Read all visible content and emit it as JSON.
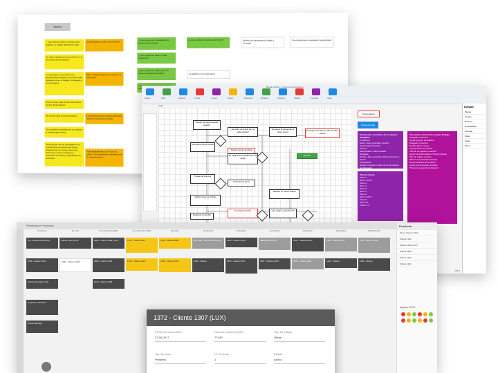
{
  "board": {
    "header_button": "Nuevo",
    "notes": [
      {
        "text": "... que utilice el mismo concepto para guardar, no pedirle guardar por caso",
        "color": "yellow"
      },
      {
        "text": "Se destacaba no sabe cómo guardar",
        "color": "orange"
      },
      {
        "text": "¿Cómo podemos la identificar los grupos e interesado?",
        "color": "green"
      },
      {
        "text": "¿Cómo podemos mostrar a personas?",
        "color": "green"
      },
      {
        "text": "Modelo de comunicación digital y (Google)",
        "color": "white"
      },
      {
        "text": "Proximidad que el delegado da estructura",
        "color": "white"
      },
      {
        "text": "No sabe realizado de las profesión en si (la cuenta de los clientes)",
        "color": "yellow"
      },
      {
        "text": "¿Cómo podemos hacer lo más relacionar?",
        "color": "green"
      },
      {
        "text": "Sabe realizado algunos sin tareas y la estructura",
        "color": "orange"
      },
      {
        "text": "¿Cómo podemos saber que ciclo grupo de trabajo las tareas?",
        "color": "green"
      },
      {
        "text": "Centralizar en la información",
        "color": "white"
      },
      {
        "text": "Lo que haga en que decirle son generalmente solapar lo que hace están tardando correo el trabajo, al delegado y los secretarios",
        "color": "yellow"
      },
      {
        "text": "¿Cómo podemos hacer que la libre Ganar...",
        "color": "green"
      },
      {
        "text": "Ver su trabajo",
        "color": "white"
      },
      {
        "text": "Para él lo que sabe dónde está obtener de tipo de al proyecto",
        "color": "yellow"
      },
      {
        "text": "No accede todo la documentación",
        "color": "yellow"
      },
      {
        "text": "La información que vuelva a diferentes sectores de oficina el estrado",
        "color": "orange"
      },
      {
        "text": "No le podemos cambiar que no molesta a molesta que se hace",
        "color": "yellow"
      },
      {
        "text": "Teniendo que de Ver que llegan en la misma forma de tareas este equipo, directamente con lo que hacen das diferentes a varios delegados y cuestiones de oficina y expedientes en la tercera",
        "color": "yellow"
      },
      {
        "text": "Todo departamento con el que no saben a documentación obtenida (dos) de departamentos",
        "color": "orange"
      }
    ]
  },
  "flow": {
    "window_title": "Bizagi Modeler - Proceso de Expediente",
    "toolbar": [
      "Nuevo",
      "Abrir",
      "Guardar",
      "Cortar",
      "Copiar",
      "Pegar",
      "Deshacer",
      "Rehacer",
      "Publicar",
      "Validar",
      "Formato",
      "Vista"
    ],
    "sheet_tab": "Inicio",
    "shapes": [
      "Recibir las tareas desde gestión",
      "¿Requiere revisar tarea?",
      "¿Se debe de entrar los por cada cliente?",
      "Desglose la capacidad a tarea nueva",
      "Se asigna una tarea a dar de alta a cliente",
      "Asignar tarea completa",
      "Se asigna las expedientes a la tarea",
      "Tareas de clientes",
      "Informe",
      "Validar tarea de trabajo",
      "Seleccionar tarea",
      "Registrar el cambio",
      "Solicitar un nuevo cliente",
      "Se asigna la tarea",
      "¿Se asignó expediente?",
      "Realizar tarea hacia",
      "¿El mercado?",
      "¿Se puede realizar la tarea?"
    ],
    "red_label": "Presentación",
    "blue_label": "Tarea Actividad",
    "pane_purple_title": "Documentos asociados de los grupos delegados",
    "pane_purple_lines": [
      "Propietario",
      "Datos: Jefes generales, Gestión Oportunidad y Fechas",
      "Clientes",
      "Responsable: Cliente Rafael",
      "Delegado",
      "Recibe: Jefes generales, Mayor Anuncios y fechas",
      "Presupuesto",
      "Recibe: Facturas o clave de Comunicación del Delegado",
      "Plan de trabajo"
    ],
    "pane_blue_title": "Plan de trabajo",
    "pane_blue_lines": [
      "Tarea 1",
      "Nivel: 1 (1-4)",
      "Tarea 2",
      "Nivel: 1",
      "Tarea 3",
      "Nivel: 2",
      "Tarea 4",
      "Nivel: 3 (5-7)",
      "Tarea 5",
      "Nivel: 2-1",
      "Fecha: 1-4"
    ],
    "pane_magenta_title": "Área Gestor Comercial en grupo Delegar",
    "pane_magenta_lines": [
      "Delegado comercial",
      "Actual al grupo de clientes",
      "Delegado comercial",
      "Recibe datos nuevos",
      "Presupuestos Comercial",
      "Informe de gestión comercial",
      "Gestor de Administración Cliente (Mesa)",
      "Plan de trabajo enviado",
      "Planes comunicación (Gestor)",
      "Documentación de la oficina",
      "Fecha Comunicación de todos",
      "Planes de seguimiento (Gestor)"
    ],
    "right_panel_title": "Default",
    "right_panel_items": [
      "Tareas",
      "Grupos",
      "Eventos",
      "Propiedades",
      "Formato",
      "Datos",
      "Capa",
      "Otros"
    ],
    "zoom": "100%"
  },
  "kanban": {
    "window_title": "Planificador Productos",
    "columns": [
      "Pendiente",
      "En cola",
      "En producción (MD)",
      "En producción (MD)",
      "Revisión",
      "Pendientes",
      "Entregado",
      "Avanzando",
      "Finalizado",
      "Aprobados",
      "Finalizado (F)"
    ],
    "cards": [
      {
        "col": 0,
        "text": "FD - Cliente 1048 (LUX)",
        "style": "kdark"
      },
      {
        "col": 0,
        "text": "1250 - Cliente 1012",
        "style": "kdark"
      },
      {
        "col": 0,
        "text": "Cliente Mensaje (LUX)",
        "style": "kdark"
      },
      {
        "col": 0,
        "text": "Proyecto 3 Revisión",
        "style": "kdark"
      },
      {
        "col": 0,
        "text": "Actual Mensaje",
        "style": "kdark"
      },
      {
        "col": 1,
        "text": "Cliente 1212 (LUX)",
        "style": "kdark"
      },
      {
        "col": 1,
        "text": "1251 - Cliente 1020",
        "style": "klight"
      },
      {
        "col": 2,
        "text": "1304 - Cliente 1092 (LUX)",
        "style": "kdark"
      },
      {
        "col": 2,
        "text": "1305 - Cliente 1012",
        "style": "kdark"
      },
      {
        "col": 2,
        "text": "1310 - Cliente 1060",
        "style": "kdark"
      },
      {
        "col": 3,
        "text": "1341 - Cliente 1111",
        "style": "kyellow"
      },
      {
        "col": 3,
        "text": "1312 - Cliente 1024",
        "style": "kyellow"
      },
      {
        "col": 4,
        "text": "1331 - Cliente 1080",
        "style": "kyellow"
      },
      {
        "col": 4,
        "text": "1333 - Cliente 1001",
        "style": "kyellow"
      },
      {
        "col": 5,
        "text": "MD 1043 - Cliente 1045 (LUX)",
        "style": "kgrey"
      },
      {
        "col": 5,
        "text": "1343 - Cliente",
        "style": "kdark"
      },
      {
        "col": 6,
        "text": "1372 - Cliente (LUX)",
        "style": "kdark"
      },
      {
        "col": 6,
        "text": "1376 - Cliente 1115",
        "style": "kdark"
      },
      {
        "col": 7,
        "text": "ABAD RFTS 1021",
        "style": "kgrey"
      },
      {
        "col": 7,
        "text": "1387 - Cliente (LUX)",
        "style": "kdark"
      },
      {
        "col": 8,
        "text": "1401 - Cliente (LUX)",
        "style": "kdark"
      },
      {
        "col": 8,
        "text": "1405 - Cliente 1019",
        "style": "kgrey"
      },
      {
        "col": 9,
        "text": "1411 - Cliente 1007",
        "style": "kgrey"
      },
      {
        "col": 9,
        "text": "1415 - Cliente",
        "style": "kdark"
      },
      {
        "col": 10,
        "text": "1421 - Cliente 1020",
        "style": "kgrey"
      },
      {
        "col": 10,
        "text": "1429 - Cliente",
        "style": "kdark"
      }
    ],
    "modal": {
      "title": "1372 - Cliente 1307 (LUX)",
      "fields": [
        {
          "label": "Fecha del documento",
          "value": "27-09-2017"
        },
        {
          "label": "Número protocolo (MD)",
          "value": "77 MD"
        },
        {
          "label": "Tipo de trabajo",
          "value": "Obras"
        },
        {
          "label": "Tipo de tarea",
          "value": "Proyecto"
        },
        {
          "label": "Nº de obras",
          "value": "1"
        },
        {
          "label": "Estado",
          "value": "Activo"
        }
      ]
    },
    "side_panel": {
      "title": "Pendiente",
      "items": [
        "Tarea: Cliente 1313",
        "Cliente 1012",
        "Cliente 1019 (LUX)",
        "Cliente 1106",
        "Cliente 1024",
        "Cliente 1211"
      ],
      "calendar_label": "Agosto 2017",
      "dot_colors": [
        "#e53935",
        "#f5b400",
        "#7ac943",
        "#e53935",
        "#f5b400",
        "#7ac943",
        "#e53935",
        "#f5b400",
        "#7ac943",
        "#f5b400",
        "#e53935",
        "#7ac943"
      ]
    }
  }
}
